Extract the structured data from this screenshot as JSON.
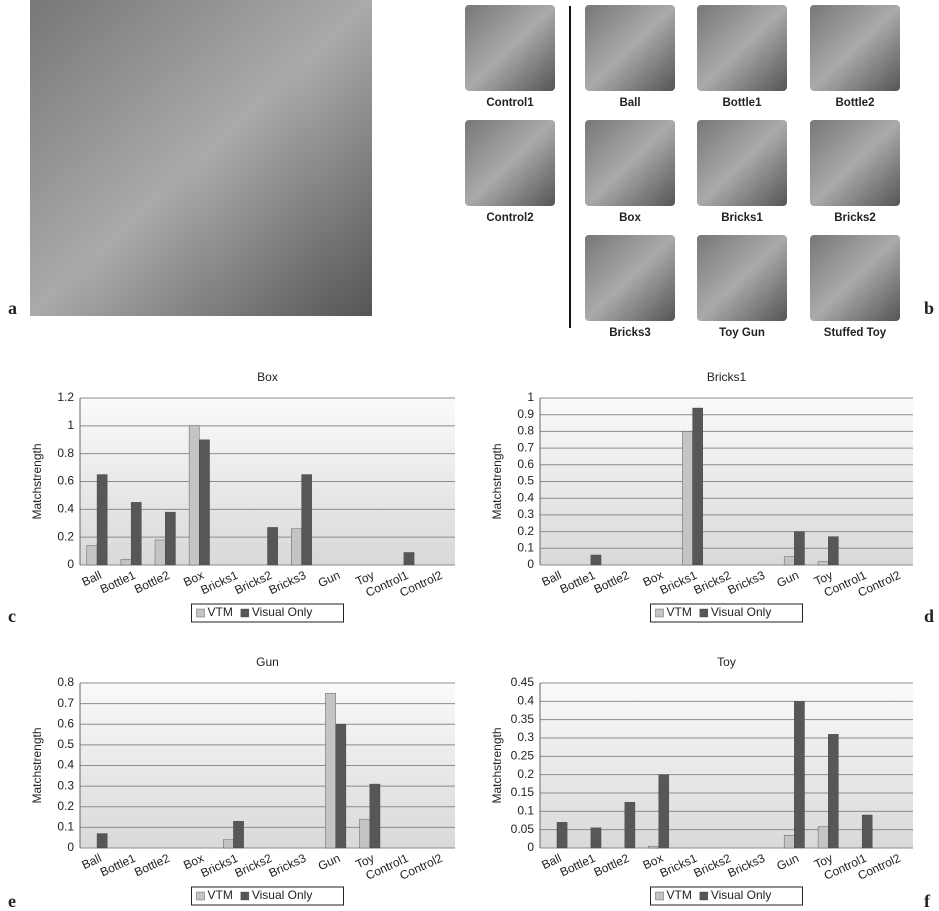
{
  "figure": {
    "panel_labels": [
      "a",
      "b",
      "c",
      "d",
      "e",
      "f"
    ],
    "thumbnail_captions": [
      "Control1",
      "Control2",
      "Ball",
      "Bottle1",
      "Bottle2",
      "Box",
      "Bricks1",
      "Bricks2",
      "Bricks3",
      "Toy Gun",
      "Stuffed Toy"
    ]
  },
  "chart_data": [
    {
      "type": "bar",
      "title": "Box",
      "y_label": "Matchstrength",
      "categories": [
        "Ball",
        "Bottle1",
        "Bottle2",
        "Box",
        "Bricks1",
        "Bricks2",
        "Bricks3",
        "Gun",
        "Toy",
        "Control1",
        "Control2"
      ],
      "series": [
        {
          "name": "VTM",
          "color": "#c4c4c4",
          "values": [
            0.14,
            0.04,
            0.18,
            1.0,
            0,
            0,
            0.26,
            0,
            0,
            0,
            0
          ]
        },
        {
          "name": "Visual Only",
          "color": "#575757",
          "values": [
            0.65,
            0.45,
            0.38,
            0.9,
            0,
            0.27,
            0.65,
            0,
            0,
            0.09,
            0
          ]
        }
      ],
      "ylim": [
        0,
        1.2
      ],
      "yticks": [
        0,
        0.2,
        0.4,
        0.6,
        0.8,
        1,
        1.2
      ],
      "grid": true,
      "legend": "bottom"
    },
    {
      "type": "bar",
      "title": "Bricks1",
      "y_label": "Matchstrength",
      "categories": [
        "Ball",
        "Bottle1",
        "Bottle2",
        "Box",
        "Bricks1",
        "Bricks2",
        "Bricks3",
        "Gun",
        "Toy",
        "Control1",
        "Control2"
      ],
      "series": [
        {
          "name": "VTM",
          "color": "#c4c4c4",
          "values": [
            0,
            0,
            0,
            0,
            0.8,
            0,
            0,
            0.05,
            0.02,
            0,
            0
          ]
        },
        {
          "name": "Visual Only",
          "color": "#575757",
          "values": [
            0,
            0.06,
            0,
            0,
            0.94,
            0,
            0,
            0.2,
            0.17,
            0,
            0
          ]
        }
      ],
      "ylim": [
        0,
        1
      ],
      "yticks": [
        0,
        0.1,
        0.2,
        0.3,
        0.4,
        0.5,
        0.6,
        0.7,
        0.8,
        0.9,
        1
      ],
      "grid": true,
      "legend": "bottom"
    },
    {
      "type": "bar",
      "title": "Gun",
      "y_label": "Matchstrength",
      "categories": [
        "Ball",
        "Bottle1",
        "Bottle2",
        "Box",
        "Bricks1",
        "Bricks2",
        "Bricks3",
        "Gun",
        "Toy",
        "Control1",
        "Control2"
      ],
      "series": [
        {
          "name": "VTM",
          "color": "#c4c4c4",
          "values": [
            0,
            0,
            0,
            0,
            0.04,
            0,
            0,
            0.75,
            0.14,
            0,
            0
          ]
        },
        {
          "name": "Visual Only",
          "color": "#575757",
          "values": [
            0.07,
            0,
            0,
            0,
            0.13,
            0,
            0,
            0.6,
            0.31,
            0,
            0
          ]
        }
      ],
      "ylim": [
        0,
        0.8
      ],
      "yticks": [
        0,
        0.1,
        0.2,
        0.3,
        0.4,
        0.5,
        0.6,
        0.7,
        0.8
      ],
      "grid": true,
      "legend": "bottom"
    },
    {
      "type": "bar",
      "title": "Toy",
      "y_label": "Matchstrength",
      "categories": [
        "Ball",
        "Bottle1",
        "Bottle2",
        "Box",
        "Bricks1",
        "Bricks2",
        "Bricks3",
        "Gun",
        "Toy",
        "Control1",
        "Control2"
      ],
      "series": [
        {
          "name": "VTM",
          "color": "#c4c4c4",
          "values": [
            0,
            0,
            0,
            0.005,
            0,
            0,
            0,
            0.035,
            0.058,
            0,
            0
          ]
        },
        {
          "name": "Visual Only",
          "color": "#575757",
          "values": [
            0.07,
            0.055,
            0.125,
            0.2,
            0,
            0,
            0,
            0.4,
            0.31,
            0.09,
            0
          ]
        }
      ],
      "ylim": [
        0,
        0.45
      ],
      "yticks": [
        0,
        0.05,
        0.1,
        0.15,
        0.2,
        0.25,
        0.3,
        0.35,
        0.4,
        0.45
      ],
      "grid": true,
      "legend": "bottom"
    }
  ]
}
